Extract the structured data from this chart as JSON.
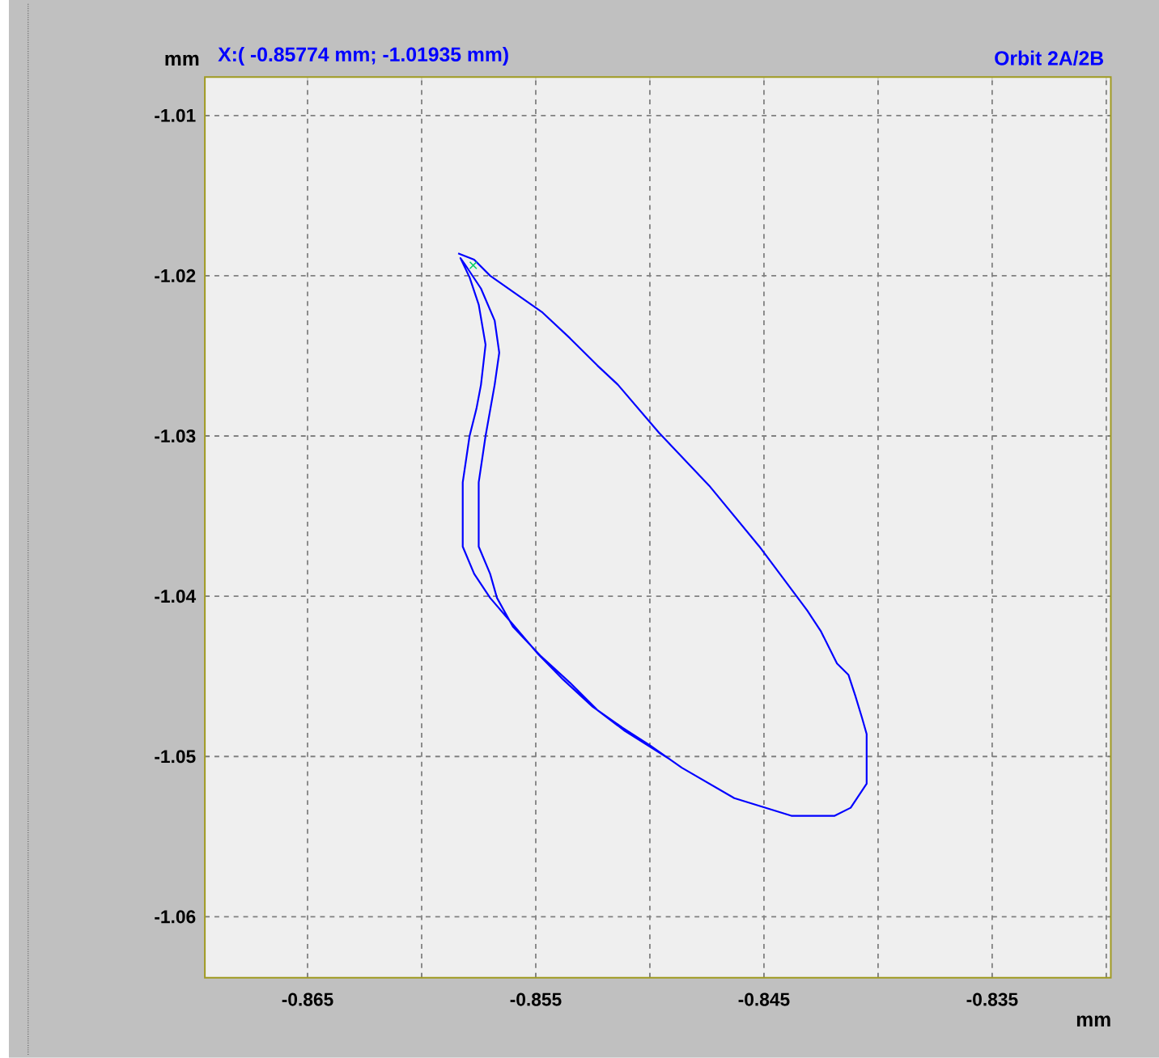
{
  "chart_data": {
    "type": "line",
    "title": "Orbit 2A/2B",
    "xlabel": "mm",
    "ylabel": "mm",
    "annotations": [
      "X:( -0.85774 mm; -1.01935 mm)"
    ],
    "xlim": [
      -0.8695,
      -0.8298
    ],
    "ylim": [
      -1.0638,
      -1.0076
    ],
    "xticks": [
      -0.865,
      {
        "value": -0.86,
        "label": null
      },
      -0.855,
      {
        "value": -0.85,
        "label": null
      },
      -0.845,
      {
        "value": -0.84,
        "label": null
      },
      -0.835,
      {
        "value": -0.83,
        "label": null
      }
    ],
    "yticks": [
      -1.06,
      -1.05,
      -1.04,
      -1.03,
      -1.02,
      -1.01
    ],
    "grid": true,
    "series": [
      {
        "color": "#0000ff",
        "x": [
          -0.8584,
          -0.8577,
          -0.857,
          -0.8558,
          -0.8547,
          -0.8535,
          -0.8523,
          -0.8514,
          -0.8496,
          -0.8474,
          -0.8452,
          -0.8431,
          -0.8425,
          -0.8418,
          -0.8413,
          -0.841,
          -0.8407,
          -0.8405,
          -0.8405,
          -0.8412,
          -0.8419,
          -0.8438,
          -0.8463,
          -0.8486,
          -0.85,
          -0.8512,
          -0.8525,
          -0.8538,
          -0.8549,
          -0.8561,
          -0.857,
          -0.8577,
          -0.8582,
          -0.8582,
          -0.8579,
          -0.8576,
          -0.8574,
          -0.8572,
          -0.8575,
          -0.8579,
          -0.8583,
          -0.8581,
          -0.8574,
          -0.8568,
          -0.8566,
          -0.8568,
          -0.8572,
          -0.8575,
          -0.8575,
          -0.857,
          -0.8567,
          -0.856,
          -0.8548,
          -0.8535,
          -0.8523,
          -0.8511,
          -0.8491
        ],
        "values": [
          -1.0186,
          -1.019,
          -1.02,
          -1.0212,
          -1.0223,
          -1.0239,
          -1.0256,
          -1.0268,
          -1.0298,
          -1.0331,
          -1.0369,
          -1.0409,
          -1.0422,
          -1.0442,
          -1.0449,
          -1.0462,
          -1.0476,
          -1.0486,
          -1.0517,
          -1.0532,
          -1.0537,
          -1.0537,
          -1.0526,
          -1.0507,
          -1.0493,
          -1.0482,
          -1.0469,
          -1.0452,
          -1.0436,
          -1.0416,
          -1.0401,
          -1.0386,
          -1.0369,
          -1.0329,
          -1.03,
          -1.0283,
          -1.0268,
          -1.0243,
          -1.0218,
          -1.0201,
          -1.0189,
          -1.0193,
          -1.0208,
          -1.0228,
          -1.0248,
          -1.0268,
          -1.03,
          -1.0329,
          -1.0369,
          -1.0386,
          -1.0401,
          -1.0419,
          -1.0437,
          -1.0454,
          -1.0471,
          -1.0484,
          -1.0502
        ]
      },
      {
        "type": "scatter",
        "marker": "cross",
        "color": "#00cc66",
        "x": [
          -0.85774
        ],
        "values": [
          -1.01935
        ]
      }
    ]
  }
}
